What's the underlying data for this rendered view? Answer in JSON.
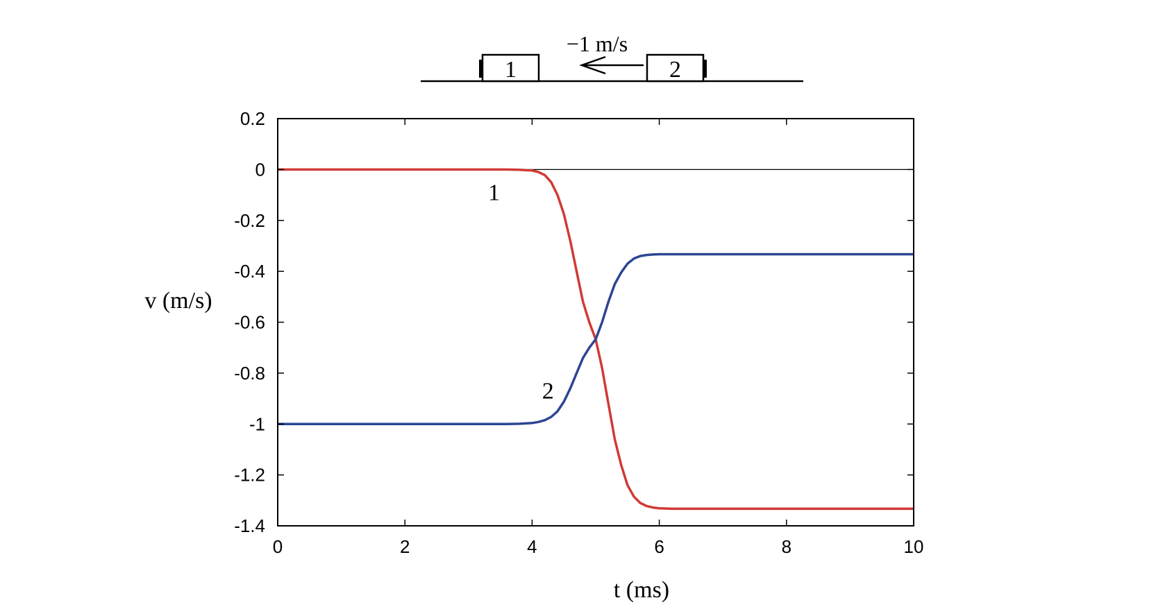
{
  "diagram": {
    "block1_label": "1",
    "block2_label": "2",
    "velocity_label": "−1 m/s"
  },
  "chart_data": {
    "type": "line",
    "xlabel": "t (ms)",
    "ylabel": "v (m/s)",
    "xlim": [
      0,
      10
    ],
    "ylim": [
      -1.4,
      0.2
    ],
    "xticks": [
      0,
      2,
      4,
      6,
      8,
      10
    ],
    "xtick_labels": [
      "0",
      "2",
      "4",
      "6",
      "8",
      "10"
    ],
    "yticks": [
      0.2,
      0,
      -0.2,
      -0.4,
      -0.6,
      -0.8,
      -1,
      -1.2,
      -1.4
    ],
    "ytick_labels": [
      "0.2",
      "0",
      "-0.2",
      "-0.4",
      "-0.6",
      "-0.8",
      "-1",
      "-1.2",
      "-1.4"
    ],
    "grid": false,
    "reference_line_y": 0,
    "series": [
      {
        "name": "1",
        "color": "#d03a35",
        "x": [
          0,
          1,
          2,
          3,
          3.6,
          3.8,
          4.0,
          4.1,
          4.2,
          4.3,
          4.4,
          4.5,
          4.6,
          4.7,
          4.8,
          4.9,
          5.0,
          5.1,
          5.2,
          5.3,
          5.4,
          5.5,
          5.6,
          5.7,
          5.8,
          5.9,
          6.0,
          6.2,
          6.5,
          7,
          8,
          9,
          10
        ],
        "y": [
          0,
          0,
          0,
          0,
          0,
          -0.001,
          -0.004,
          -0.01,
          -0.022,
          -0.05,
          -0.1,
          -0.175,
          -0.28,
          -0.4,
          -0.52,
          -0.6,
          -0.667,
          -0.78,
          -0.92,
          -1.06,
          -1.16,
          -1.24,
          -1.285,
          -1.31,
          -1.322,
          -1.328,
          -1.331,
          -1.333,
          -1.333,
          -1.333,
          -1.333,
          -1.333,
          -1.333
        ]
      },
      {
        "name": "2",
        "color": "#2d4593",
        "x": [
          0,
          1,
          2,
          3,
          3.6,
          3.8,
          4.0,
          4.1,
          4.2,
          4.3,
          4.4,
          4.5,
          4.6,
          4.7,
          4.8,
          4.9,
          5.0,
          5.1,
          5.2,
          5.3,
          5.4,
          5.5,
          5.6,
          5.7,
          5.8,
          5.9,
          6.0,
          6.2,
          6.5,
          7,
          8,
          9,
          10
        ],
        "y": [
          -1,
          -1,
          -1,
          -1,
          -1,
          -0.999,
          -0.996,
          -0.992,
          -0.985,
          -0.972,
          -0.95,
          -0.912,
          -0.86,
          -0.8,
          -0.74,
          -0.7,
          -0.667,
          -0.6,
          -0.52,
          -0.45,
          -0.405,
          -0.37,
          -0.35,
          -0.34,
          -0.336,
          -0.334,
          -0.333,
          -0.333,
          -0.333,
          -0.333,
          -0.333,
          -0.333,
          -0.333
        ]
      }
    ],
    "annotations": [
      {
        "text": "1",
        "x": 3.4,
        "y": -0.09
      },
      {
        "text": "2",
        "x": 4.25,
        "y": -0.87
      }
    ]
  }
}
